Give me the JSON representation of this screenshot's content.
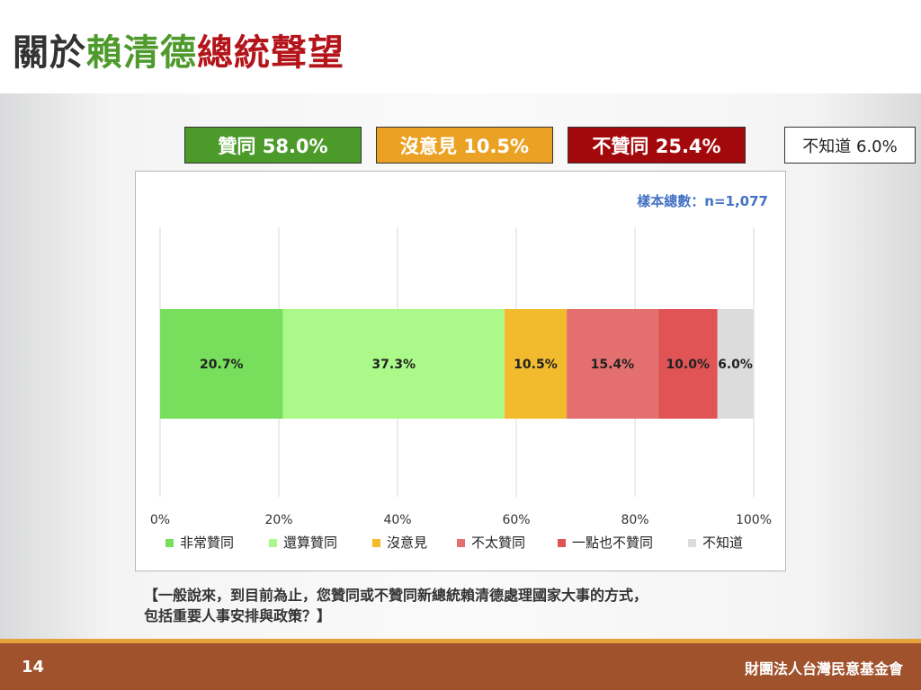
{
  "title": {
    "part1": "關於",
    "part2": "賴清德",
    "part3": "總統聲望"
  },
  "summary": {
    "agree": "贊同 58.0%",
    "neutral": "沒意見 10.5%",
    "disagree": "不贊同 25.4%",
    "dontknow": "不知道 6.0%"
  },
  "chart_data": {
    "type": "bar",
    "orientation": "horizontal",
    "stacked": true,
    "sample_note": "樣本總數：n=1,077",
    "xlim": [
      0,
      100
    ],
    "x_ticks": [
      "0%",
      "20%",
      "40%",
      "60%",
      "80%",
      "100%"
    ],
    "grid": true,
    "legend_position": "bottom",
    "series": [
      {
        "name": "非常贊同",
        "value": 20.7,
        "label": "20.7%",
        "color": "#77df5c"
      },
      {
        "name": "還算贊同",
        "value": 37.3,
        "label": "37.3%",
        "color": "#abfa89"
      },
      {
        "name": "沒意見",
        "value": 10.5,
        "label": "10.5%",
        "color": "#f2bb2e"
      },
      {
        "name": "不太贊同",
        "value": 15.4,
        "label": "15.4%",
        "color": "#e36f6f"
      },
      {
        "name": "一點也不贊同",
        "value": 10.0,
        "label": "10.0%",
        "color": "#e05456"
      },
      {
        "name": "不知道",
        "value": 6.0,
        "label": "6.0%",
        "color": "#dcdcdc"
      }
    ]
  },
  "question": {
    "line1": "【一般說來，到目前為止，您贊同或不贊同新總統賴清德處理國家大事的方式，",
    "line2": "包括重要人事安排與政策？】"
  },
  "footer": {
    "page": "14",
    "org": "財團法人台灣民意基金會"
  }
}
